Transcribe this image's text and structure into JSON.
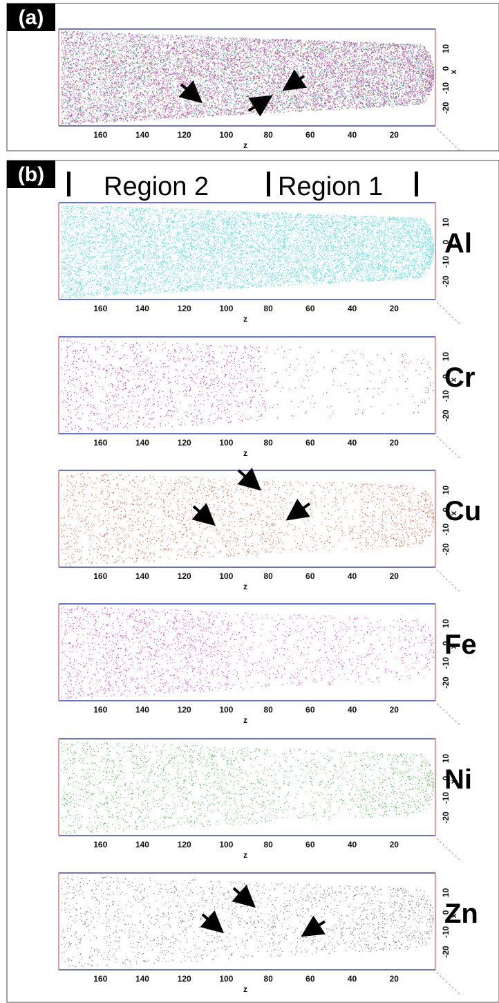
{
  "figure": {
    "z_ticks": [
      160,
      140,
      120,
      100,
      80,
      60,
      40,
      20
    ],
    "x_ticks": [
      10,
      0,
      -10,
      -20
    ],
    "z_label": "z",
    "x_label": "x",
    "panel_a": {
      "label": "(a)"
    },
    "panel_b": {
      "label": "(b)",
      "regions": [
        "Region 2",
        "Region 1"
      ],
      "elements": [
        "Al",
        "Cr",
        "Cu",
        "Fe",
        "Ni",
        "Zn"
      ]
    }
  }
}
